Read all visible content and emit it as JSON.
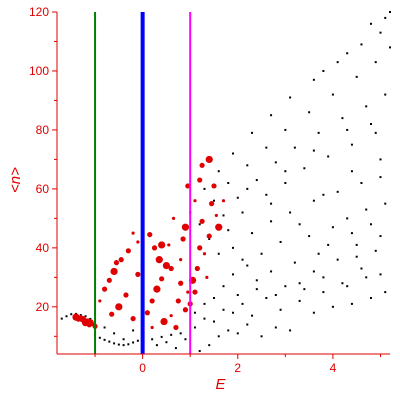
{
  "chart_data": {
    "type": "scatter",
    "xlabel": "E",
    "ylabel": "<n>",
    "xlim": [
      -1.8,
      5.2
    ],
    "ylim": [
      4,
      120
    ],
    "x_ticks": [
      0,
      2,
      4
    ],
    "x_tick_labels": [
      "0",
      "2",
      "4"
    ],
    "y_ticks": [
      20,
      40,
      60,
      80,
      100,
      120
    ],
    "y_tick_labels": [
      "20",
      "40",
      "60",
      "80",
      "100",
      "120"
    ],
    "grid": false,
    "legend": "none",
    "vertical_lines": [
      {
        "x": -1.0,
        "color": "#008000",
        "width": "thin"
      },
      {
        "x": 0.0,
        "color": "#0000ff",
        "width": "thick"
      },
      {
        "x": 1.0,
        "color": "#ff00ff",
        "width": "thin"
      }
    ],
    "series": [
      {
        "color": "#000000",
        "marker_size": "small",
        "points": [
          [
            -1.7,
            16.0
          ],
          [
            -1.6,
            16.8
          ],
          [
            -1.5,
            17.5
          ],
          [
            -1.4,
            17.6
          ],
          [
            -1.3,
            17.2
          ],
          [
            -1.2,
            16.8
          ],
          [
            -1.1,
            15.9
          ],
          [
            -0.9,
            9.5
          ],
          [
            -0.8,
            8.8
          ],
          [
            -0.7,
            8.2
          ],
          [
            -0.6,
            7.6
          ],
          [
            -0.5,
            7.2
          ],
          [
            -0.4,
            7.0
          ],
          [
            -0.3,
            7.3
          ],
          [
            -0.2,
            7.9
          ],
          [
            -0.1,
            8.5
          ],
          [
            0.2,
            9.0
          ],
          [
            0.4,
            9.8
          ],
          [
            0.6,
            10.5
          ],
          [
            0.8,
            11.0
          ],
          [
            -0.8,
            13.0
          ],
          [
            -0.6,
            11.0
          ],
          [
            -0.4,
            9.0
          ],
          [
            -0.2,
            12.0
          ],
          [
            0.3,
            7.0
          ],
          [
            0.5,
            8.0
          ],
          [
            0.7,
            6.0
          ],
          [
            0.9,
            9.0
          ],
          [
            1.2,
            5.0
          ],
          [
            1.4,
            7.0
          ],
          [
            1.6,
            10.0
          ],
          [
            1.8,
            12.0
          ],
          [
            2.0,
            11.0
          ],
          [
            2.2,
            14.0
          ],
          [
            2.5,
            10.0
          ],
          [
            2.8,
            13.0
          ],
          [
            3.1,
            12.0
          ],
          [
            1.1,
            13.0
          ],
          [
            1.3,
            16.0
          ],
          [
            1.5,
            15.0
          ],
          [
            1.7,
            19.0
          ],
          [
            1.9,
            18.0
          ],
          [
            2.1,
            21.0
          ],
          [
            2.3,
            17.0
          ],
          [
            2.6,
            23.0
          ],
          [
            2.9,
            19.0
          ],
          [
            3.3,
            22.0
          ],
          [
            3.6,
            18.0
          ],
          [
            4.0,
            20.0
          ],
          [
            4.4,
            21.0
          ],
          [
            4.8,
            23.0
          ],
          [
            5.1,
            25.0
          ],
          [
            3.0,
            27.0
          ],
          [
            3.4,
            26.0
          ],
          [
            3.8,
            30.0
          ],
          [
            4.2,
            28.0
          ],
          [
            4.6,
            33.0
          ],
          [
            5.0,
            31.0
          ],
          [
            2.4,
            29.0
          ],
          [
            2.7,
            32.0
          ],
          [
            3.2,
            35.0
          ],
          [
            3.7,
            38.0
          ],
          [
            4.1,
            36.0
          ],
          [
            4.5,
            41.0
          ],
          [
            4.9,
            39.0
          ],
          [
            2.2,
            34.0
          ],
          [
            2.5,
            38.0
          ],
          [
            2.9,
            42.0
          ],
          [
            3.5,
            44.0
          ],
          [
            4.0,
            47.0
          ],
          [
            4.3,
            50.0
          ],
          [
            4.7,
            53.0
          ],
          [
            5.1,
            55.0
          ],
          [
            1.9,
            40.0
          ],
          [
            2.3,
            45.0
          ],
          [
            2.7,
            49.0
          ],
          [
            3.1,
            52.0
          ],
          [
            3.6,
            56.0
          ],
          [
            4.1,
            59.0
          ],
          [
            4.6,
            62.0
          ],
          [
            5.0,
            64.0
          ],
          [
            1.6,
            38.0
          ],
          [
            1.8,
            46.0
          ],
          [
            2.1,
            52.0
          ],
          [
            2.6,
            58.0
          ],
          [
            3.0,
            62.0
          ],
          [
            3.4,
            67.0
          ],
          [
            3.9,
            71.0
          ],
          [
            4.4,
            75.0
          ],
          [
            4.9,
            79.0
          ],
          [
            1.4,
            43.0
          ],
          [
            1.7,
            51.0
          ],
          [
            2.0,
            57.0
          ],
          [
            2.4,
            63.0
          ],
          [
            2.8,
            69.0
          ],
          [
            3.2,
            74.0
          ],
          [
            3.7,
            79.0
          ],
          [
            4.2,
            84.0
          ],
          [
            4.7,
            88.0
          ],
          [
            5.1,
            92.0
          ],
          [
            1.2,
            48.0
          ],
          [
            1.5,
            56.0
          ],
          [
            1.8,
            62.0
          ],
          [
            2.2,
            68.0
          ],
          [
            2.6,
            74.0
          ],
          [
            3.0,
            80.0
          ],
          [
            3.5,
            86.0
          ],
          [
            4.0,
            92.0
          ],
          [
            4.5,
            98.0
          ],
          [
            4.9,
            103.0
          ],
          [
            5.2,
            108.0
          ],
          [
            1.0,
            52.0
          ],
          [
            1.3,
            60.0
          ],
          [
            1.6,
            66.0
          ],
          [
            1.9,
            72.0
          ],
          [
            2.3,
            79.0
          ],
          [
            2.7,
            85.0
          ],
          [
            3.1,
            91.0
          ],
          [
            3.6,
            97.0
          ],
          [
            4.1,
            103.0
          ],
          [
            4.6,
            109.0
          ],
          [
            5.0,
            113.0
          ],
          [
            3.8,
            100.0
          ],
          [
            4.3,
            106.0
          ],
          [
            4.8,
            116.0
          ],
          [
            5.1,
            118.0
          ],
          [
            5.2,
            120.0
          ],
          [
            2.0,
            24.0
          ],
          [
            2.4,
            26.0
          ],
          [
            2.8,
            24.0
          ],
          [
            3.3,
            28.0
          ],
          [
            3.8,
            25.0
          ],
          [
            4.3,
            27.0
          ],
          [
            4.7,
            30.0
          ],
          [
            3.6,
            32.0
          ],
          [
            4.5,
            37.0
          ],
          [
            5.0,
            44.0
          ],
          [
            4.8,
            48.0
          ],
          [
            4.4,
            45.0
          ],
          [
            3.9,
            41.0
          ],
          [
            3.3,
            48.0
          ],
          [
            2.7,
            55.0
          ],
          [
            2.2,
            60.0
          ],
          [
            3.0,
            66.0
          ],
          [
            3.8,
            58.0
          ],
          [
            4.4,
            66.0
          ],
          [
            5.0,
            70.0
          ],
          [
            4.8,
            82.0
          ],
          [
            4.3,
            80.0
          ],
          [
            3.6,
            73.0
          ],
          [
            1.5,
            23.0
          ],
          [
            1.7,
            27.0
          ],
          [
            1.9,
            31.0
          ],
          [
            2.1,
            36.0
          ],
          [
            1.3,
            21.0
          ],
          [
            1.1,
            18.0
          ]
        ]
      },
      {
        "color": "#e00000",
        "marker_size": "large",
        "points": [
          [
            -1.4,
            16.5
          ],
          [
            -1.3,
            16.3
          ],
          [
            -1.25,
            16.0
          ],
          [
            -1.2,
            15.6
          ],
          [
            -1.15,
            15.2
          ],
          [
            -1.1,
            14.6
          ],
          [
            -1.05,
            14.0
          ],
          [
            -1.0,
            13.4
          ],
          [
            -1.35,
            15.8
          ],
          [
            -1.28,
            15.3
          ],
          [
            -1.2,
            14.6
          ],
          [
            -1.12,
            13.9
          ],
          [
            -0.9,
            22.0
          ],
          [
            -0.8,
            26.0
          ],
          [
            -0.7,
            29.0
          ],
          [
            -0.6,
            32.0
          ],
          [
            -0.45,
            36.0
          ],
          [
            -0.3,
            39.0
          ],
          [
            -0.1,
            42.0
          ],
          [
            0.15,
            44.5
          ],
          [
            0.4,
            41.0
          ],
          [
            0.55,
            41.0
          ],
          [
            0.95,
            61.0
          ],
          [
            1.2,
            63.0
          ],
          [
            1.1,
            56.0
          ],
          [
            0.9,
            47.0
          ],
          [
            0.85,
            43.0
          ],
          [
            0.8,
            36.0
          ],
          [
            0.6,
            33.0
          ],
          [
            0.4,
            29.5
          ],
          [
            0.3,
            26.0
          ],
          [
            0.2,
            22.0
          ],
          [
            1.2,
            40.0
          ],
          [
            1.3,
            38.0
          ],
          [
            1.15,
            33.0
          ],
          [
            1.05,
            29.0
          ],
          [
            0.95,
            25.0
          ],
          [
            0.75,
            22.0
          ],
          [
            0.9,
            19.0
          ],
          [
            0.6,
            17.0
          ],
          [
            0.45,
            15.0
          ],
          [
            0.7,
            13.0
          ],
          [
            0.2,
            13.0
          ],
          [
            0.1,
            18.0
          ],
          [
            -0.2,
            16.0
          ],
          [
            -0.5,
            20.0
          ],
          [
            -0.65,
            17.5
          ],
          [
            -0.35,
            24.0
          ],
          [
            0.0,
            28.0
          ],
          [
            -0.1,
            31.0
          ],
          [
            0.35,
            36.0
          ],
          [
            0.65,
            50.0
          ],
          [
            1.25,
            49.0
          ],
          [
            1.45,
            55.0
          ],
          [
            1.55,
            51.0
          ],
          [
            1.6,
            47.0
          ],
          [
            1.4,
            44.0
          ],
          [
            1.35,
            30.0
          ],
          [
            1.1,
            25.0
          ],
          [
            0.8,
            28.0
          ],
          [
            0.5,
            34.0
          ],
          [
            1.0,
            21.0
          ],
          [
            0.25,
            40.0
          ],
          [
            -0.2,
            45.0
          ],
          [
            1.25,
            68.0
          ],
          [
            1.4,
            70.0
          ],
          [
            1.7,
            56.0
          ],
          [
            1.5,
            61.0
          ],
          [
            -0.55,
            35.0
          ]
        ]
      }
    ]
  }
}
